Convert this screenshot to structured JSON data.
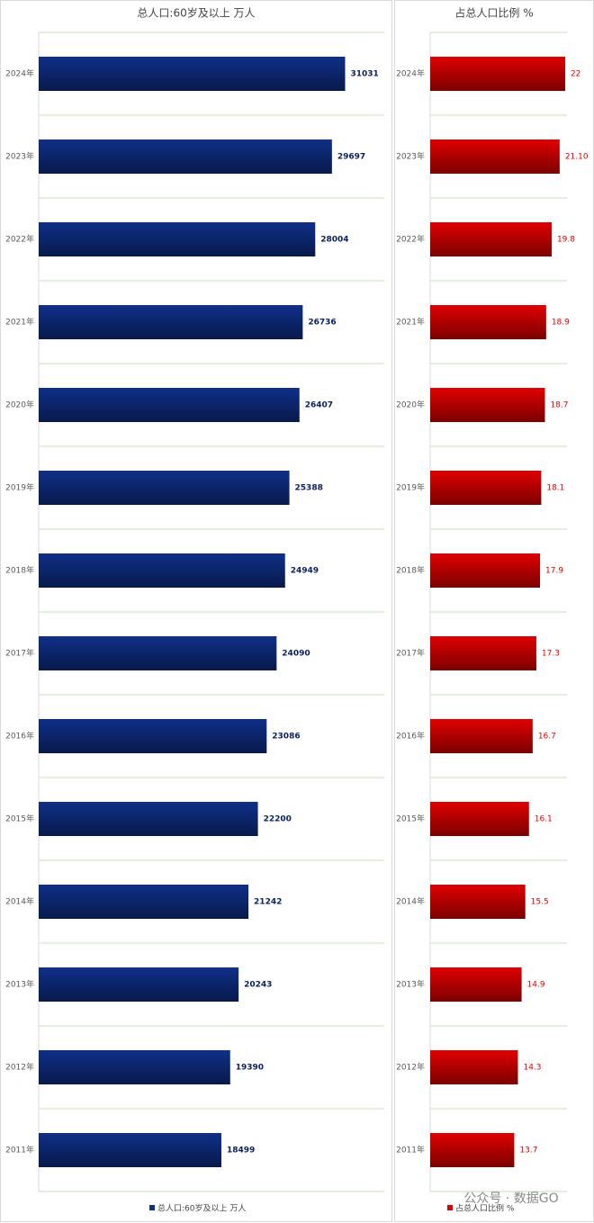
{
  "chart_data": [
    {
      "type": "bar",
      "orientation": "horizontal",
      "title": "总人口:60岁及以上 万人",
      "categories": [
        "2024年",
        "2023年",
        "2022年",
        "2021年",
        "2020年",
        "2019年",
        "2018年",
        "2017年",
        "2016年",
        "2015年",
        "2014年",
        "2013年",
        "2012年",
        "2011年"
      ],
      "series": [
        {
          "name": "总人口:60岁及以上 万人",
          "color": "#0f2f88",
          "values": [
            31031,
            29697,
            28004,
            26736,
            26407,
            25388,
            24949,
            24090,
            23086,
            22200,
            21242,
            20243,
            19390,
            18499
          ]
        }
      ],
      "xlim": [
        0,
        35000
      ],
      "label_color": "#0b1f5c"
    },
    {
      "type": "bar",
      "orientation": "horizontal",
      "title": "占总人口比例 %",
      "categories": [
        "2024年",
        "2023年",
        "2022年",
        "2021年",
        "2020年",
        "2019年",
        "2018年",
        "2017年",
        "2016年",
        "2015年",
        "2014年",
        "2013年",
        "2012年",
        "2011年"
      ],
      "series": [
        {
          "name": "占总人口比例 %",
          "color": "#e00000",
          "values": [
            22,
            21.1,
            19.8,
            18.9,
            18.7,
            18.1,
            17.9,
            17.3,
            16.7,
            16.1,
            15.5,
            14.9,
            14.3,
            13.7
          ],
          "value_labels": [
            "22",
            "21.10",
            "19.8",
            "18.9",
            "18.7",
            "18.1",
            "17.9",
            "17.3",
            "16.7",
            "16.1",
            "15.5",
            "14.9",
            "14.3",
            "13.7"
          ]
        }
      ],
      "xlim": [
        0,
        22.3
      ],
      "label_color": "#e00000"
    }
  ],
  "watermark": "公众号 · 数据GO"
}
